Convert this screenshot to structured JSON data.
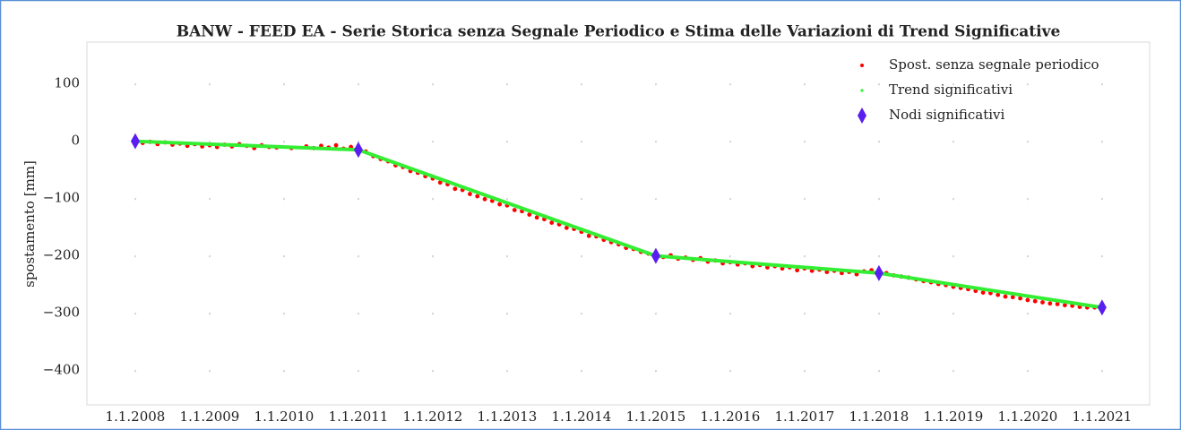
{
  "chart_data": {
    "type": "scatter",
    "title": "BANW - FEED EA - Serie Storica senza Segnale Periodico e Stima delle Variazioni di Trend Significative",
    "y_label": "spostamento [mm]",
    "xlim": [
      2007.35,
      2021.64
    ],
    "ylim": [
      -460,
      173
    ],
    "xticks": [
      {
        "value": 2008,
        "label": "1.1.2008"
      },
      {
        "value": 2009,
        "label": "1.1.2009"
      },
      {
        "value": 2010,
        "label": "1.1.2010"
      },
      {
        "value": 2011,
        "label": "1.1.2011"
      },
      {
        "value": 2012,
        "label": "1.1.2012"
      },
      {
        "value": 2013,
        "label": "1.1.2013"
      },
      {
        "value": 2014,
        "label": "1.1.2014"
      },
      {
        "value": 2015,
        "label": "1.1.2015"
      },
      {
        "value": 2016,
        "label": "1.1.2016"
      },
      {
        "value": 2017,
        "label": "1.1.2017"
      },
      {
        "value": 2018,
        "label": "1.1.2018"
      },
      {
        "value": 2019,
        "label": "1.1.2019"
      },
      {
        "value": 2020,
        "label": "1.1.2020"
      },
      {
        "value": 2021,
        "label": "1.1.2021"
      }
    ],
    "yticks": [
      100,
      0,
      {
        "value": -100,
        "label": "−100"
      },
      {
        "value": -200,
        "label": "−200"
      },
      {
        "value": -300,
        "label": "−300"
      },
      {
        "value": -400,
        "label": "−400"
      }
    ],
    "grid": true,
    "legend": "upper right",
    "series": [
      {
        "name": "Spost. senza segnale periodico",
        "type": "scatter",
        "marker": "point",
        "color": "#ff0000",
        "x": [
          2008.0,
          2008.1,
          2008.2,
          2008.3,
          2008.4,
          2008.5,
          2008.6,
          2008.7,
          2008.8,
          2008.9,
          2009.0,
          2009.1,
          2009.2,
          2009.3,
          2009.4,
          2009.5,
          2009.6,
          2009.7,
          2009.8,
          2009.9,
          2010.1,
          2010.3,
          2010.4,
          2010.5,
          2010.6,
          2010.7,
          2010.8,
          2010.9,
          2011.0,
          2011.1,
          2011.2,
          2011.3,
          2011.4,
          2011.5,
          2011.6,
          2011.7,
          2011.8,
          2011.9,
          2012.0,
          2012.1,
          2012.2,
          2012.3,
          2012.4,
          2012.5,
          2012.6,
          2012.7,
          2012.8,
          2012.9,
          2013.0,
          2013.1,
          2013.2,
          2013.3,
          2013.4,
          2013.5,
          2013.6,
          2013.7,
          2013.8,
          2013.9,
          2014.0,
          2014.1,
          2014.2,
          2014.3,
          2014.4,
          2014.5,
          2014.6,
          2014.7,
          2014.8,
          2014.9,
          2015.0,
          2015.1,
          2015.2,
          2015.3,
          2015.4,
          2015.5,
          2015.6,
          2015.7,
          2015.8,
          2015.9,
          2016.0,
          2016.1,
          2016.2,
          2016.3,
          2016.4,
          2016.5,
          2016.6,
          2016.7,
          2016.8,
          2016.9,
          2017.0,
          2017.1,
          2017.2,
          2017.3,
          2017.4,
          2017.5,
          2017.6,
          2017.7,
          2017.8,
          2017.9,
          2018.0,
          2018.1,
          2018.2,
          2018.3,
          2018.4,
          2018.5,
          2018.6,
          2018.7,
          2018.8,
          2018.9,
          2019.0,
          2019.1,
          2019.2,
          2019.3,
          2019.4,
          2019.5,
          2019.6,
          2019.7,
          2019.8,
          2019.9,
          2020.0,
          2020.1,
          2020.2,
          2020.3,
          2020.4,
          2020.5,
          2020.6,
          2020.7,
          2020.8,
          2020.9,
          2021.0
        ],
        "values": [
          2,
          -3,
          -1,
          -5,
          -2,
          -6,
          -4,
          -8,
          -5,
          -9,
          -7,
          -10,
          -6,
          -9,
          -5,
          -8,
          -12,
          -7,
          -10,
          -11,
          -12,
          -9,
          -12,
          -8,
          -11,
          -7,
          -13,
          -10,
          -15,
          -18,
          -26,
          -31,
          -35,
          -42,
          -45,
          -52,
          -55,
          -61,
          -65,
          -72,
          -75,
          -83,
          -85,
          -92,
          -96,
          -101,
          -104,
          -110,
          -112,
          -120,
          -122,
          -128,
          -133,
          -136,
          -142,
          -145,
          -151,
          -153,
          -158,
          -165,
          -166,
          -172,
          -176,
          -180,
          -186,
          -188,
          -193,
          -196,
          -199,
          -202,
          -199,
          -205,
          -203,
          -207,
          -204,
          -210,
          -208,
          -213,
          -211,
          -215,
          -213,
          -218,
          -216,
          -220,
          -218,
          -222,
          -220,
          -225,
          -222,
          -226,
          -224,
          -228,
          -226,
          -230,
          -228,
          -232,
          -227,
          -225,
          -224,
          -230,
          -234,
          -236,
          -238,
          -241,
          -244,
          -246,
          -249,
          -251,
          -254,
          -256,
          -258,
          -261,
          -264,
          -265,
          -268,
          -271,
          -272,
          -274,
          -277,
          -279,
          -281,
          -283,
          -284,
          -286,
          -287,
          -289,
          -290,
          -290,
          -292
        ]
      },
      {
        "name": "Trend significativi",
        "type": "line",
        "color": "#33ee33",
        "x": [
          2008,
          2011,
          2015,
          2018,
          2021
        ],
        "values": [
          0,
          -15,
          -200,
          -230,
          -290
        ]
      },
      {
        "name": "Nodi significativi",
        "type": "scatter",
        "marker": "diamond",
        "color": "#5a1ef0",
        "x": [
          2008,
          2011,
          2015,
          2018,
          2021
        ],
        "values": [
          0,
          -15,
          -200,
          -230,
          -290
        ]
      }
    ]
  }
}
